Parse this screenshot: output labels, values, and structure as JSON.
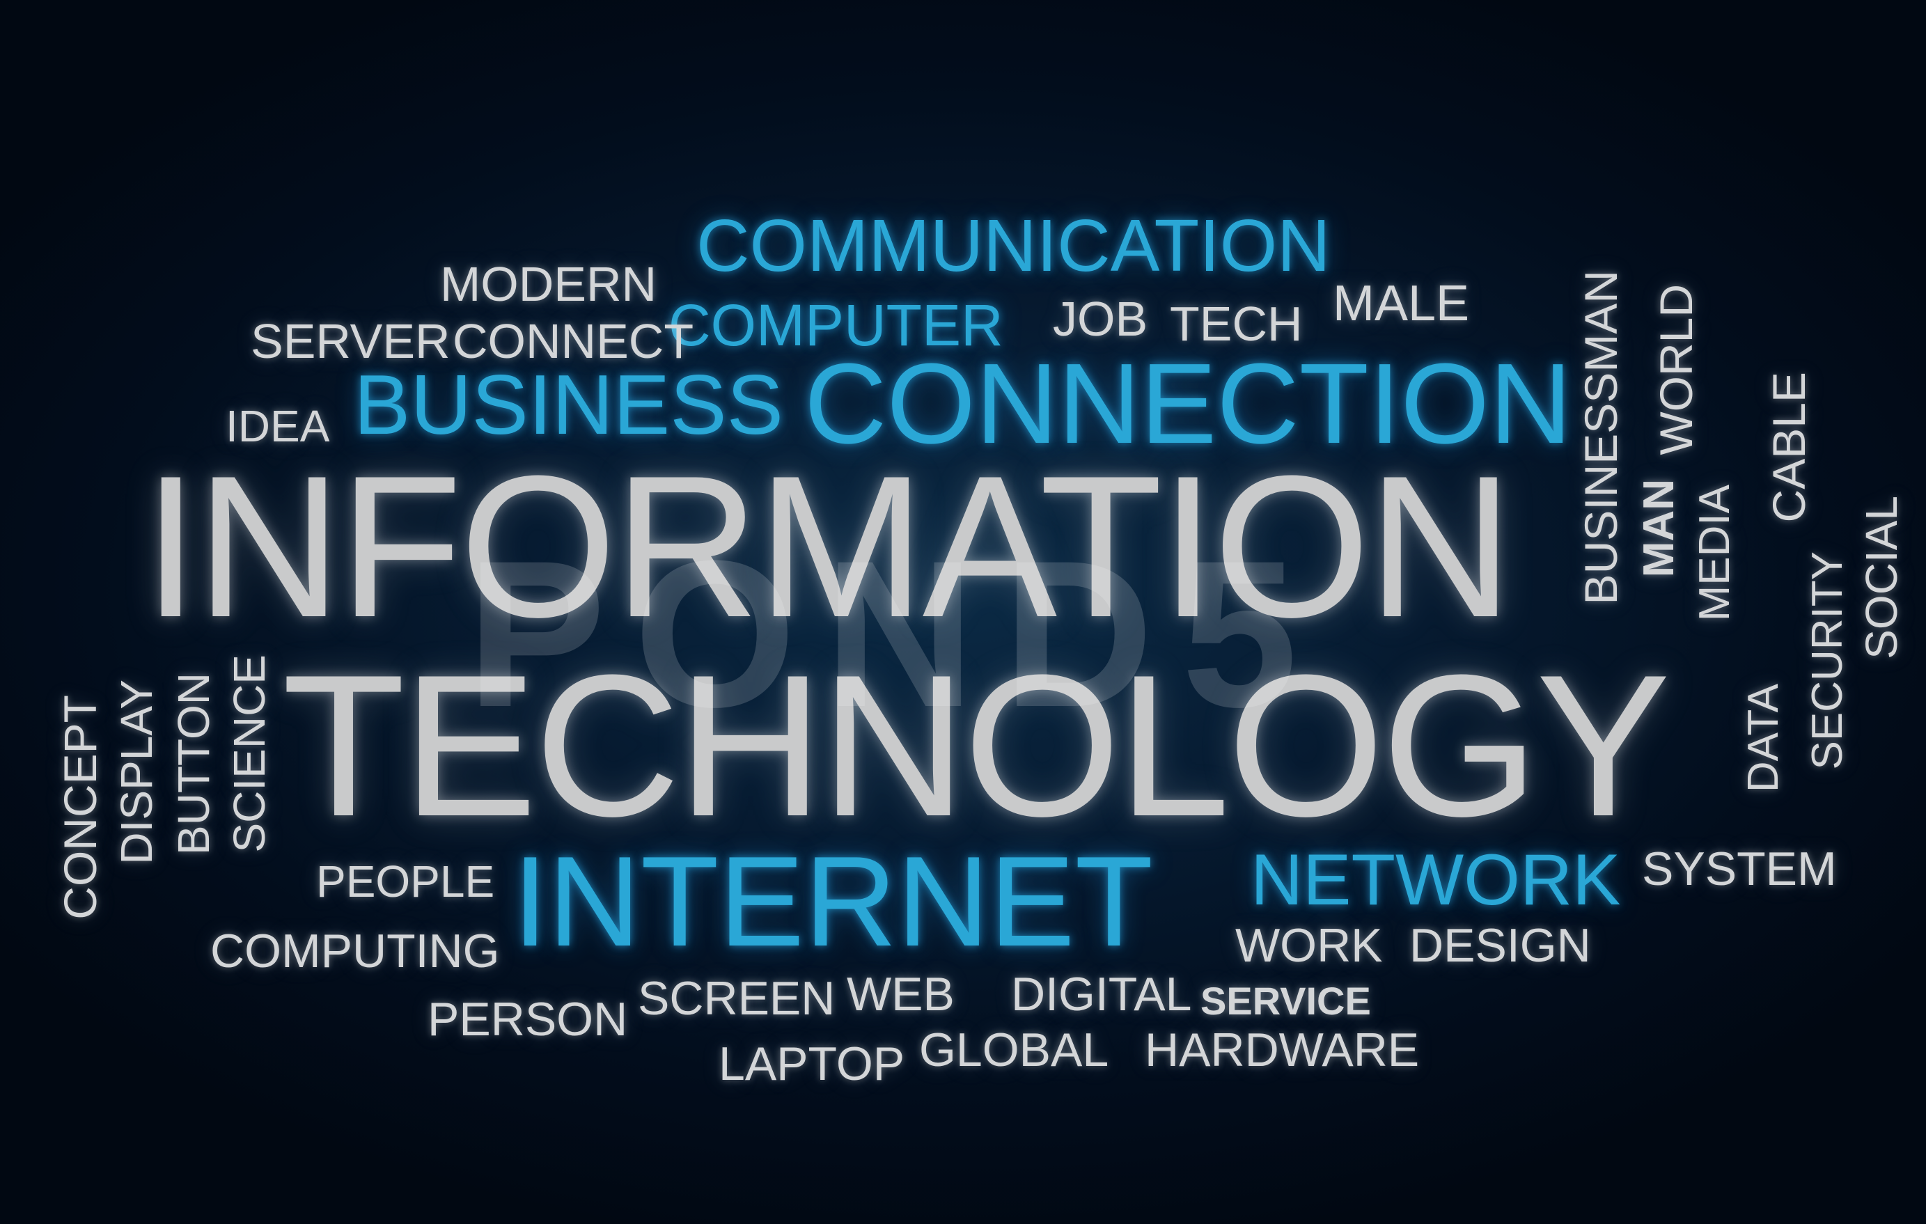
{
  "words": {
    "communication": "COMMUNICATION",
    "modern": "MODERN",
    "computer": "COMPUTER",
    "job": "JOB",
    "tech": "TECH",
    "male": "MALE",
    "server": "SERVER",
    "connect": "CONNECT",
    "idea": "IDEA",
    "business": "BUSINESS",
    "connection": "CONNECTION",
    "information": "INFORMATION",
    "technology": "TECHNOLOGY",
    "businessman": "BUSINESSMAN",
    "world": "WORLD",
    "man": "MAN",
    "media": "MEDIA",
    "cable": "CABLE",
    "security": "SECURITY",
    "social": "SOCIAL",
    "data": "DATA",
    "concept": "CONCEPT",
    "display": "DISPLAY",
    "button": "BUTTON",
    "science": "SCIENCE",
    "people": "PEOPLE",
    "internet": "INTERNET",
    "network": "NETWORK",
    "system": "SYSTEM",
    "computing": "COMPUTING",
    "work": "WORK",
    "design": "DESIGN",
    "person": "PERSON",
    "screen": "SCREEN",
    "web": "WEB",
    "digital": "DIGITAL",
    "service": "SERVICE",
    "laptop": "LAPTOP",
    "global": "GLOBAL",
    "hardware": "HARDWARE"
  },
  "watermark": "POND5",
  "colors": {
    "background": "#020d1c",
    "blue_words": "#2aa7d6",
    "gray_words": "#d4d6d8"
  }
}
